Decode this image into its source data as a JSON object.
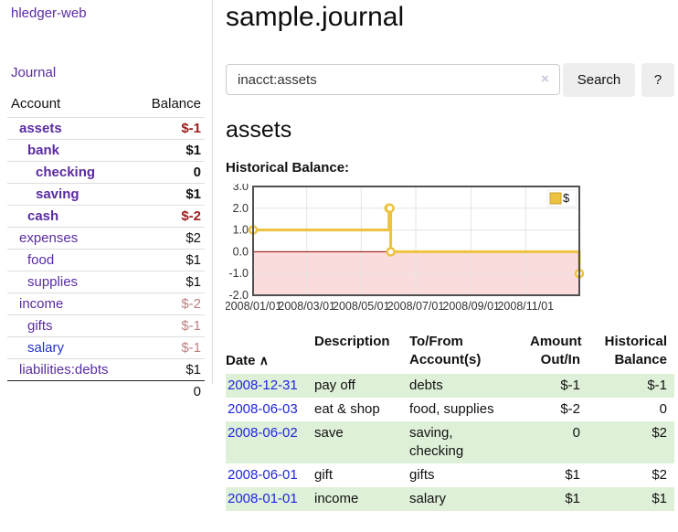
{
  "sidebar": {
    "app_title": "hledger-web",
    "journal_link": "Journal",
    "accounts_table": {
      "account_header": "Account",
      "balance_header": "Balance",
      "rows": [
        {
          "name": "assets",
          "level": 0,
          "bold": true,
          "balance": "$-1",
          "balance_class": "neg-strong",
          "link_blue": false
        },
        {
          "name": "bank",
          "level": 1,
          "bold": true,
          "balance": "$1",
          "balance_class": "",
          "link_blue": false
        },
        {
          "name": "checking",
          "level": 2,
          "bold": true,
          "balance": "0",
          "balance_class": "",
          "link_blue": false
        },
        {
          "name": "saving",
          "level": 2,
          "bold": true,
          "balance": "$1",
          "balance_class": "",
          "link_blue": false
        },
        {
          "name": "cash",
          "level": 1,
          "bold": true,
          "balance": "$-2",
          "balance_class": "neg-strong",
          "link_blue": false
        },
        {
          "name": "expenses",
          "level": 0,
          "bold": false,
          "balance": "$2",
          "balance_class": "",
          "link_blue": false
        },
        {
          "name": "food",
          "level": 1,
          "bold": false,
          "balance": "$1",
          "balance_class": "",
          "link_blue": false
        },
        {
          "name": "supplies",
          "level": 1,
          "bold": false,
          "balance": "$1",
          "balance_class": "",
          "link_blue": false
        },
        {
          "name": "income",
          "level": 0,
          "bold": false,
          "balance": "$-2",
          "balance_class": "neg-soft",
          "link_blue": false
        },
        {
          "name": "gifts",
          "level": 1,
          "bold": false,
          "balance": "$-1",
          "balance_class": "neg-soft",
          "link_blue": false
        },
        {
          "name": "salary",
          "level": 1,
          "bold": false,
          "balance": "$-1",
          "balance_class": "neg-soft",
          "link_blue": true
        },
        {
          "name": "liabilities:debts",
          "level": 0,
          "bold": false,
          "balance": "$1",
          "balance_class": "",
          "link_blue": false
        }
      ],
      "total": "0"
    }
  },
  "main": {
    "title": "sample.journal",
    "search": {
      "query": "inacct:assets",
      "clear_icon": "×",
      "search_label": "Search",
      "help_label": "?"
    },
    "account_heading": "assets",
    "chart_label": "Historical Balance:"
  },
  "register": {
    "headers": {
      "date": "Date",
      "sort_icon": "∧",
      "description": "Description",
      "tofrom": "To/From\nAccount(s)",
      "amount": "Amount\nOut/In",
      "historical": "Historical\nBalance"
    },
    "rows": [
      {
        "date": "2008-12-31",
        "description": "pay off",
        "accounts": "debts",
        "amount": "$-1",
        "amount_negative": true,
        "balance": "$-1",
        "balance_negative": true
      },
      {
        "date": "2008-06-03",
        "description": "eat & shop",
        "accounts": "food, supplies",
        "amount": "$-2",
        "amount_negative": true,
        "balance": "0",
        "balance_negative": false
      },
      {
        "date": "2008-06-02",
        "description": "save",
        "accounts": "saving,\nchecking",
        "amount": "0",
        "amount_negative": false,
        "balance": "$2",
        "balance_negative": false
      },
      {
        "date": "2008-06-01",
        "description": "gift",
        "accounts": "gifts",
        "amount": "$1",
        "amount_negative": false,
        "balance": "$2",
        "balance_negative": false
      },
      {
        "date": "2008-01-01",
        "description": "income",
        "accounts": "salary",
        "amount": "$1",
        "amount_negative": false,
        "balance": "$1",
        "balance_negative": false
      }
    ]
  },
  "chart_data": {
    "type": "line",
    "title": "Historical Balance:",
    "step": true,
    "xlim": [
      "2008-01-01",
      "2008-12-31"
    ],
    "ylim": [
      -2,
      3
    ],
    "y_ticks": [
      3.0,
      2.0,
      1.0,
      0.0,
      -1.0,
      -2.0
    ],
    "x_ticks": [
      "2008/01/01",
      "2008/03/01",
      "2008/05/01",
      "2008/07/01",
      "2008/09/01",
      "2008/11/01"
    ],
    "series": [
      {
        "name": "$",
        "color": "#edc240",
        "points": [
          [
            "2008-01-01",
            1
          ],
          [
            "2008-06-01",
            2
          ],
          [
            "2008-06-02",
            2
          ],
          [
            "2008-06-03",
            0
          ],
          [
            "2008-12-31",
            -1
          ]
        ]
      }
    ],
    "legend": {
      "label": "$",
      "position": "top-right"
    },
    "grid": true,
    "negative_region_color": "#fbdcdc",
    "zero_line_color": "#8b0000"
  },
  "colors": {
    "accent_purple": "#5a2ca0",
    "link_blue": "#2233cc",
    "date_link_blue": "#2026dd",
    "negative_strong": "#9d1d1d",
    "negative_soft": "#bd8080",
    "row_stripe_green": "#dff0d8",
    "chart_line_yellow": "#edc240",
    "chart_negative_pink": "#fbdcdc",
    "chart_zero_line": "#8b0000"
  }
}
